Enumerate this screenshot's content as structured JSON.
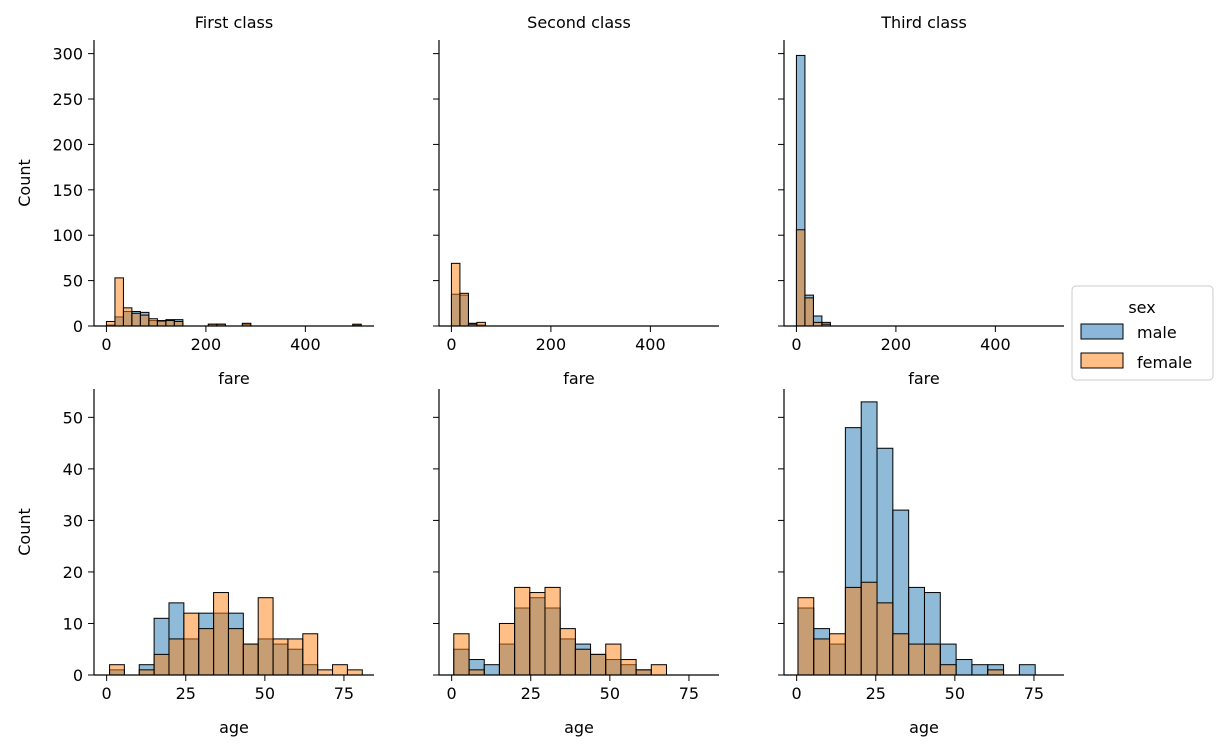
{
  "legend": {
    "title": "sex",
    "placement": "right",
    "items": [
      {
        "label": "male",
        "color": "#1f77b4"
      },
      {
        "label": "female",
        "color": "#ff7f0e"
      }
    ]
  },
  "colors": {
    "male": "#1f77b4",
    "female": "#ff7f0e",
    "overlap": "#8e9a9a",
    "edge": "#000000"
  },
  "chart_data": [
    {
      "type": "bar",
      "histogram": true,
      "row": 0,
      "col": 0,
      "title": "First class",
      "xlabel": "fare",
      "ylabel": "Count",
      "xlim": [
        -25,
        538
      ],
      "ylim": [
        0,
        315
      ],
      "xticks": [
        0,
        200,
        400
      ],
      "yticks": [
        0,
        50,
        100,
        150,
        200,
        250,
        300
      ],
      "bin_edges": [
        0,
        17.1,
        34.2,
        51.2,
        68.3,
        85.4,
        102.5,
        119.6,
        136.6,
        153.7,
        170.8,
        187.9,
        204.9,
        222.0,
        239.1,
        256.2,
        273.3,
        290.3,
        307.4,
        324.5,
        341.6,
        358.7,
        375.7,
        392.8,
        409.9,
        427.0,
        444.1,
        461.1,
        478.2,
        495.3,
        512.3
      ],
      "series": [
        {
          "name": "male",
          "values": [
            1,
            10,
            16,
            16,
            15,
            6,
            5,
            7,
            7,
            0,
            0,
            0,
            2,
            2,
            0,
            0,
            2,
            0,
            0,
            0,
            0,
            0,
            0,
            0,
            0,
            0,
            0,
            0,
            0,
            1
          ]
        },
        {
          "name": "female",
          "values": [
            5,
            53,
            20,
            14,
            12,
            8,
            6,
            6,
            5,
            0,
            0,
            0,
            2,
            2,
            0,
            0,
            3,
            0,
            0,
            0,
            0,
            0,
            0,
            0,
            0,
            0,
            0,
            0,
            0,
            2
          ]
        }
      ]
    },
    {
      "type": "bar",
      "histogram": true,
      "row": 0,
      "col": 1,
      "title": "Second class",
      "xlabel": "fare",
      "ylabel": "",
      "xlim": [
        -25,
        538
      ],
      "ylim": [
        0,
        315
      ],
      "xticks": [
        0,
        200,
        400
      ],
      "yticks": [
        0,
        50,
        100,
        150,
        200,
        250,
        300
      ],
      "bin_edges": [
        0,
        17.1,
        34.2,
        51.2,
        68.3,
        85.4
      ],
      "series": [
        {
          "name": "male",
          "values": [
            35,
            34,
            3,
            1,
            0
          ]
        },
        {
          "name": "female",
          "values": [
            69,
            36,
            2,
            4,
            0
          ]
        }
      ]
    },
    {
      "type": "bar",
      "histogram": true,
      "row": 0,
      "col": 2,
      "title": "Third class",
      "xlabel": "fare",
      "ylabel": "",
      "xlim": [
        -25,
        538
      ],
      "ylim": [
        0,
        315
      ],
      "xticks": [
        0,
        200,
        400
      ],
      "yticks": [
        0,
        50,
        100,
        150,
        200,
        250,
        300
      ],
      "bin_edges": [
        0,
        17.1,
        34.2,
        51.2,
        68.3,
        85.4
      ],
      "series": [
        {
          "name": "male",
          "values": [
            298,
            34,
            11,
            4,
            0
          ]
        },
        {
          "name": "female",
          "values": [
            106,
            31,
            4,
            2,
            0
          ]
        }
      ]
    },
    {
      "type": "bar",
      "histogram": true,
      "row": 1,
      "col": 0,
      "title": "",
      "xlabel": "age",
      "ylabel": "Count",
      "xlim": [
        -4,
        84.5
      ],
      "ylim": [
        0,
        55.5
      ],
      "xticks": [
        0,
        25,
        50,
        75
      ],
      "yticks": [
        0,
        10,
        20,
        30,
        40,
        50
      ],
      "bin_edges": [
        0.92,
        5.6,
        10.3,
        15.0,
        19.7,
        24.4,
        29.1,
        33.8,
        38.5,
        43.2,
        47.9,
        52.6,
        57.3,
        62.0,
        66.7,
        71.4,
        76.1,
        80.8
      ],
      "series": [
        {
          "name": "male",
          "values": [
            1,
            0,
            2,
            11,
            14,
            7,
            12,
            12,
            12,
            6,
            7,
            6,
            5,
            2,
            0,
            0,
            0
          ]
        },
        {
          "name": "female",
          "values": [
            2,
            0,
            1,
            4,
            7,
            12,
            9,
            16,
            9,
            6,
            15,
            7,
            7,
            8,
            1,
            2,
            1
          ]
        }
      ]
    },
    {
      "type": "bar",
      "histogram": true,
      "row": 1,
      "col": 1,
      "title": "",
      "xlabel": "age",
      "ylabel": "",
      "xlim": [
        -4,
        84.5
      ],
      "ylim": [
        0,
        55.5
      ],
      "xticks": [
        0,
        25,
        50,
        75
      ],
      "yticks": [
        0,
        10,
        20,
        30,
        40,
        50
      ],
      "bin_edges": [
        0.67,
        5.5,
        10.3,
        15.1,
        19.9,
        24.7,
        29.5,
        34.3,
        39.1,
        43.9,
        48.7,
        53.5,
        58.3,
        63.1,
        67.9,
        72.7,
        77.5
      ],
      "series": [
        {
          "name": "male",
          "values": [
            5,
            3,
            2,
            6,
            13,
            15,
            13,
            7,
            6,
            4,
            3,
            2,
            1,
            0,
            0,
            0
          ]
        },
        {
          "name": "female",
          "values": [
            8,
            1,
            0,
            10,
            17,
            16,
            17,
            9,
            5,
            4,
            6,
            3,
            1,
            2,
            0,
            0
          ]
        }
      ]
    },
    {
      "type": "bar",
      "histogram": true,
      "row": 1,
      "col": 2,
      "title": "",
      "xlabel": "age",
      "ylabel": "",
      "xlim": [
        -4,
        84.5
      ],
      "ylim": [
        0,
        55.5
      ],
      "xticks": [
        0,
        25,
        50,
        75
      ],
      "yticks": [
        0,
        10,
        20,
        30,
        40,
        50
      ],
      "bin_edges": [
        0.42,
        5.4,
        10.4,
        15.4,
        20.4,
        25.4,
        30.4,
        35.4,
        40.4,
        45.4,
        50.4,
        55.4,
        60.4,
        65.4,
        70.4,
        75.4
      ],
      "series": [
        {
          "name": "male",
          "values": [
            13,
            9,
            6,
            48,
            53,
            44,
            32,
            17,
            16,
            6,
            3,
            2,
            2,
            0,
            2
          ]
        },
        {
          "name": "female",
          "values": [
            15,
            7,
            8,
            17,
            18,
            14,
            8,
            6,
            6,
            2,
            0,
            0,
            1,
            0,
            0
          ]
        }
      ]
    }
  ]
}
